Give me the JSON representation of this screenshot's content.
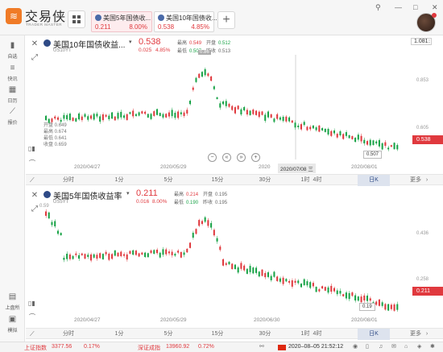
{
  "app": {
    "logo_text": "交易侠",
    "logo_sub": "TRADER MASTER",
    "logo_glyph": "≋"
  },
  "tabs": [
    {
      "name": "美国5年国债收...",
      "value": "0.211",
      "pct": "8.00%",
      "active": true
    },
    {
      "name": "美国10年国债收...",
      "value": "0.538",
      "pct": "4.85%",
      "active": false
    }
  ],
  "window_controls": [
    "⚲",
    "—",
    "□",
    "✕"
  ],
  "sidebar": [
    {
      "label": "自选",
      "icon": "bookmark-icon",
      "glyph": "▮"
    },
    {
      "label": "快讯",
      "icon": "news-icon",
      "glyph": "≡"
    },
    {
      "label": "日历",
      "icon": "calendar-icon",
      "glyph": "▦"
    },
    {
      "label": "报价",
      "icon": "chart-line-icon",
      "glyph": "⟋"
    },
    {
      "label": "上盘所",
      "icon": "building-icon",
      "glyph": "▤"
    },
    {
      "label": "模拟",
      "icon": "simulate-icon",
      "glyph": "▣"
    }
  ],
  "panel1": {
    "title": "美国10年国债收益...",
    "price": "0.538",
    "symbol": "US10YT",
    "change": "0.025",
    "change_pct": "4.85%",
    "stats": {
      "high_label": "最高",
      "high": "0.549",
      "open_label": "开盘",
      "open": "0.512",
      "low_label": "最低",
      "low": "0.507",
      "prev_label": "昨收",
      "prev": "0.513"
    },
    "ohlc": {
      "open": "开盘 0.649",
      "high": "最高 0.674",
      "low": "最低 0.641",
      "close": "收盘 0.659"
    },
    "dates": [
      "2020/04/27",
      "2020/05/29",
      "2020",
      "2020/08/01"
    ],
    "cursor_date": "2020/07/08 三",
    "right_vals": [
      "1.081",
      "0.853",
      "0.605"
    ],
    "peak_label": "0.86",
    "last_tag": "0.507",
    "price_tag": "0.538"
  },
  "panel2": {
    "title": "美国5年国债收益率",
    "price": "0.211",
    "symbol": "US5YT",
    "change": "0.016",
    "change_pct": "8.00%",
    "stats": {
      "high_label": "最高",
      "high": "0.214",
      "open_label": "开盘",
      "open": "0.195",
      "low_label": "最低",
      "low": "0.190",
      "prev_label": "昨收",
      "prev": "0.195"
    },
    "dates": [
      "2020/04/27",
      "2020/05/29",
      "2020/06/30",
      "2020/08/01"
    ],
    "right_vals": [
      "0.436",
      "0.258"
    ],
    "peak_label": "0.59",
    "last_tag": "0.19",
    "price_tag": "0.211"
  },
  "timeframes": [
    "分时",
    "1分",
    "5分",
    "15分",
    "30分",
    "1时",
    "4时",
    "日K",
    "更多"
  ],
  "timeframe_more_arrow": "›",
  "status": {
    "idx1_name": "上证指数",
    "idx1_value": "3377.56",
    "idx1_pct": "0.17%",
    "idx2_name": "深证成指",
    "idx2_value": "13960.92",
    "idx2_pct": "0.72%",
    "datetime": "2020–08–05 21:52:12"
  },
  "colors": {
    "up": "#e0393e",
    "down": "#19a347",
    "accent": "#f07b27"
  }
}
